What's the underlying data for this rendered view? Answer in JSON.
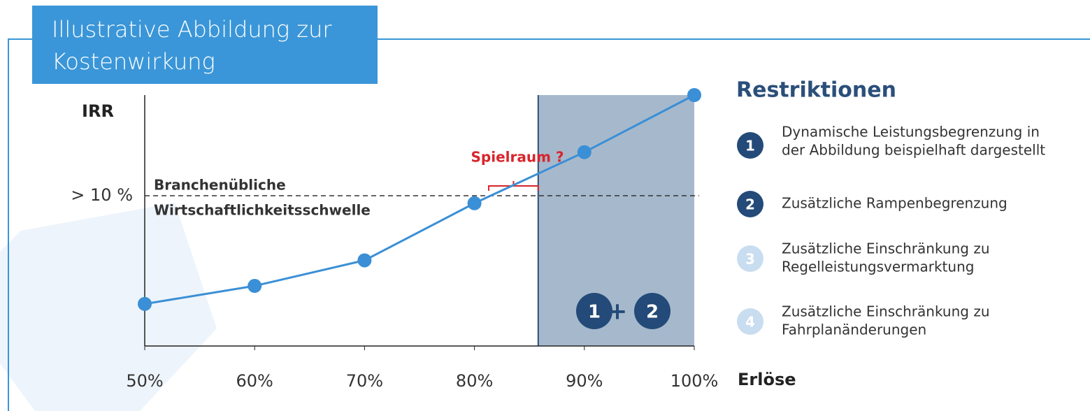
{
  "header": {
    "title": [
      "Illustrative Abbildung zur",
      "Kostenwirkung"
    ]
  },
  "chart_data": {
    "type": "line",
    "y_label": "IRR",
    "x_label": "Erlöse",
    "x": [
      50,
      60,
      70,
      80,
      90,
      100
    ],
    "xlim": [
      50,
      100
    ],
    "xticks": [
      {
        "value": 50,
        "label": "50%"
      },
      {
        "value": 60,
        "label": "60%"
      },
      {
        "value": 70,
        "label": "70%"
      },
      {
        "value": 80,
        "label": "80%"
      },
      {
        "value": 90,
        "label": "90%"
      },
      {
        "value": 100,
        "label": "100%"
      }
    ],
    "series": [
      {
        "color": "#3a8fd6",
        "values": [
          2.8,
          4.0,
          5.7,
          9.5,
          12.9,
          16.7
        ]
      }
    ],
    "ylim": [
      0,
      16.7
    ],
    "yticks": [
      {
        "value": 10,
        "label": "> 10 %"
      }
    ],
    "threshold_label": [
      "Branchenübliche",
      "Wirtschaftlichkeitsschwelle"
    ],
    "spielraum": {
      "label": "Spielraum ?",
      "range": [
        81.3,
        85.8
      ],
      "color": "#d9242b"
    },
    "restricted_region": {
      "range": [
        85.8,
        100
      ],
      "color": "#a6b9cc",
      "badge": [
        "1",
        "+",
        "2"
      ]
    }
  },
  "restrictions": {
    "title": "Restriktionen",
    "items": [
      {
        "number": "1",
        "lines": [
          "Dynamische Leistungsbegrenzung in",
          "der Abbildung beispielhaft dargestellt"
        ],
        "color": "#234a78"
      },
      {
        "number": "2",
        "lines": [
          "Zusätzliche Rampenbegrenzung"
        ],
        "color": "#234a78"
      },
      {
        "number": "3",
        "lines": [
          "Zusätzliche Einschränkung zu",
          "Regelleistungsvermarktung"
        ],
        "color": "#c9ddf0"
      },
      {
        "number": "4",
        "lines": [
          "Zusätzliche Einschränkung zu",
          "Fahrplanänderungen"
        ],
        "color": "#c9ddf0"
      }
    ]
  }
}
